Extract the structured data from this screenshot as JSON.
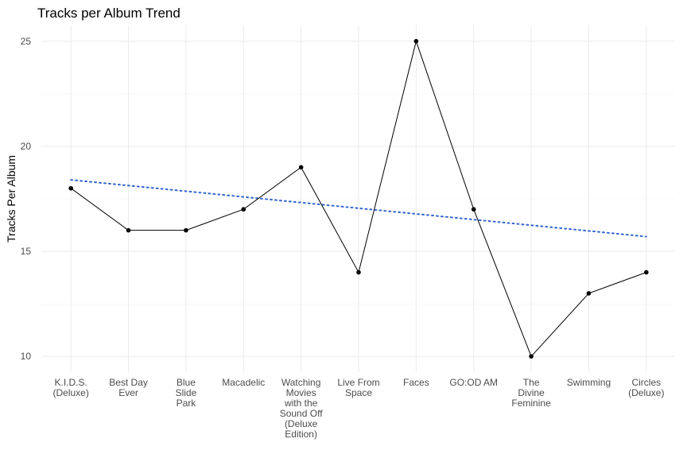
{
  "chart_data": {
    "type": "line",
    "title": "Tracks per Album Trend",
    "y_label": "Tracks Per Album",
    "categories": [
      "K.I.D.S.\n(Deluxe)",
      "Best Day\nEver",
      "Blue\nSlide\nPark",
      "Macadelic",
      "Watching\nMovies\nwith the\nSound Off\n(Deluxe\nEdition)",
      "Live From\nSpace",
      "Faces",
      "GO:OD AM",
      "The\nDivine\nFeminine",
      "Swimming",
      "Circles\n(Deluxe)"
    ],
    "series": [
      {
        "color": "#000000",
        "values": [
          18,
          16,
          16,
          17,
          19,
          14,
          25,
          17,
          10,
          13,
          14
        ]
      }
    ],
    "trend_line": {
      "color": "#3366cc",
      "values": [
        18.4,
        15.7
      ]
    },
    "ylim": [
      9.25,
      25.75
    ],
    "yticks": [
      10,
      15,
      20,
      25
    ],
    "grid": true,
    "minor_grid": true
  }
}
